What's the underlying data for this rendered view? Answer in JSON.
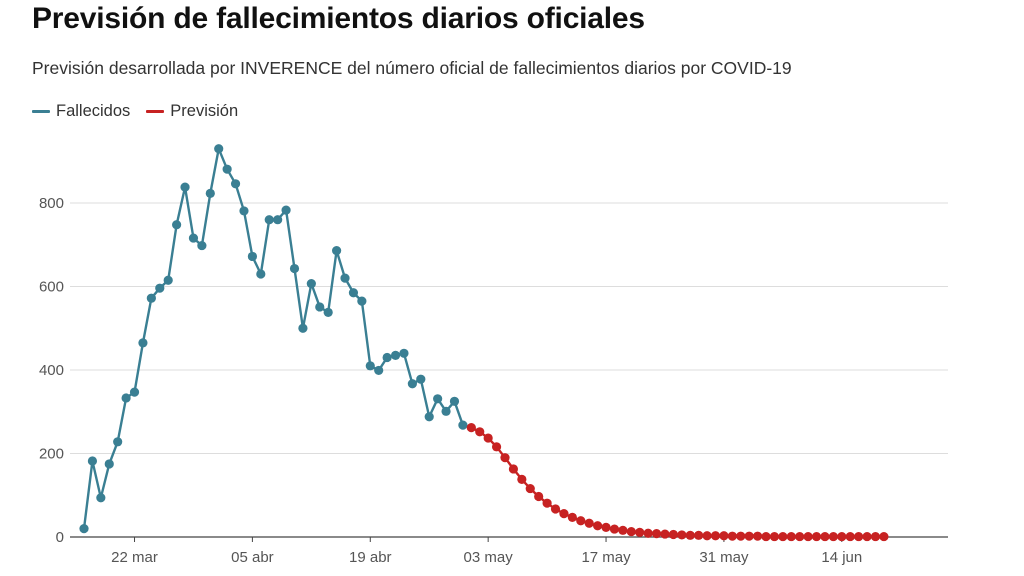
{
  "chart_data": {
    "type": "line",
    "title": "Previsión de fallecimientos diarios oficiales",
    "subtitle": "Previsión desarrollada por INVERENCE del número oficial de fallecimientos diarios por COVID-19",
    "xlabel": "",
    "ylabel": "",
    "ylim": [
      0,
      950
    ],
    "grid": true,
    "legend_position": "top-left",
    "y_ticks": [
      "0",
      "200",
      "400",
      "600",
      "800"
    ],
    "x_ticks": [
      {
        "label": "22 mar",
        "day": 6
      },
      {
        "label": "05 abr",
        "day": 20
      },
      {
        "label": "19 abr",
        "day": 34
      },
      {
        "label": "03 may",
        "day": 48
      },
      {
        "label": "17 may",
        "day": 62
      },
      {
        "label": "31 may",
        "day": 76
      },
      {
        "label": "14 jun",
        "day": 90
      }
    ],
    "x_unit": "days since 16 mar",
    "series": [
      {
        "name": "Fallecidos",
        "color": "#3a7f93",
        "start_day": 0,
        "values": [
          20,
          182,
          94,
          175,
          228,
          333,
          347,
          465,
          572,
          596,
          615,
          748,
          838,
          716,
          698,
          823,
          930,
          881,
          846,
          781,
          672,
          630,
          760,
          760,
          783,
          643,
          500,
          607,
          551,
          538,
          686,
          620,
          585,
          565,
          410,
          399,
          430,
          435,
          440,
          367,
          378,
          288,
          331,
          301,
          325,
          268
        ]
      },
      {
        "name": "Previsión",
        "color": "#c72222",
        "start_day": 46,
        "values": [
          262,
          252,
          237,
          216,
          190,
          163,
          138,
          116,
          97,
          81,
          67,
          56,
          47,
          39,
          33,
          27,
          23,
          19,
          16,
          13,
          11,
          9,
          8,
          7,
          6,
          5,
          4,
          4,
          3,
          3,
          3,
          2,
          2,
          2,
          2,
          1,
          1,
          1,
          1,
          1,
          1,
          1,
          1,
          1,
          1,
          1,
          1,
          1,
          1,
          1
        ]
      }
    ]
  }
}
